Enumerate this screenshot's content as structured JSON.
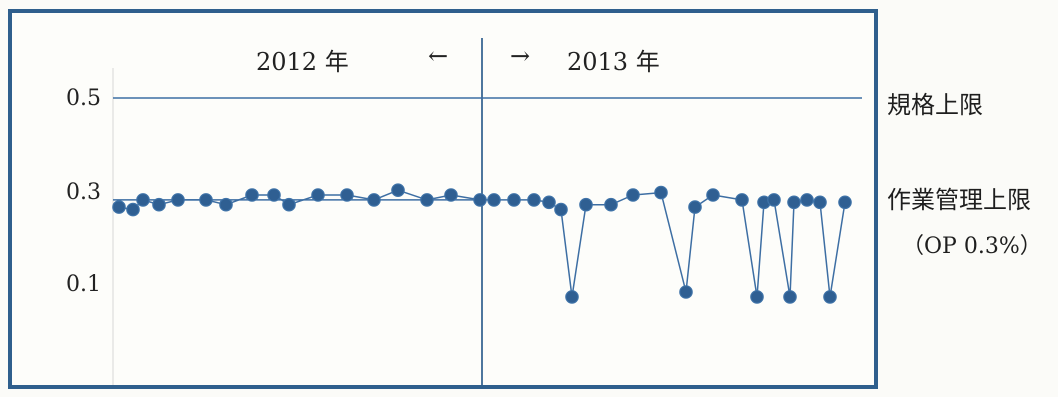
{
  "chart_data": {
    "type": "line",
    "title": "",
    "xlabel": "",
    "ylabel": "",
    "ylim": [
      0,
      0.62
    ],
    "yticks": [
      "0.5",
      "0.3",
      "0.1"
    ],
    "period_labels": {
      "left": "2012 年",
      "left_arrow": "←",
      "right_arrow": "→",
      "right": "2013 年"
    },
    "reference_lines": [
      {
        "label": "規格上限",
        "value": 0.5
      },
      {
        "label": "作業管理上限",
        "sub_label": "（OP 0.3%）",
        "value": 0.29
      }
    ],
    "series": [
      {
        "values": [
          0.275,
          0.27,
          0.29,
          0.28,
          0.29,
          0.29,
          0.28,
          0.3,
          0.3,
          0.28,
          0.3,
          0.3,
          0.29,
          0.31,
          0.29,
          0.3,
          0.29,
          0.29,
          0.29,
          0.29,
          0.285,
          0.27,
          0.09,
          0.28,
          0.28,
          0.3,
          0.305,
          0.1,
          0.275,
          0.3,
          0.29,
          0.09,
          0.285,
          0.29,
          0.09,
          0.285,
          0.29,
          0.285,
          0.09,
          0.285
        ]
      }
    ],
    "colors": {
      "frame": "#2f5f8d",
      "line": "#3d6ea3",
      "point": "#2f5f92"
    }
  }
}
